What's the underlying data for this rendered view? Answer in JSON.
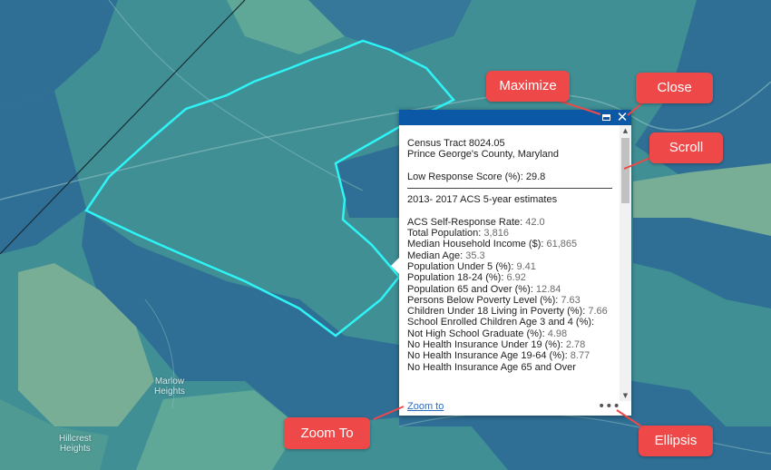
{
  "map": {
    "labels": [
      "Marlow\nHeights",
      "Hillcrest\nHeights"
    ],
    "colors": {
      "base": "#3f8f95",
      "dark_tract": "#2f6f95",
      "light_tract": "#5fa898",
      "pale_tract": "#78ad96",
      "highlight": "#2ef4f6"
    }
  },
  "popup": {
    "header_color": "#0a58a6",
    "maximize_icon": "maximize-icon",
    "close_icon": "close-icon",
    "title_line1": "Census Tract 8024.05",
    "title_line2": "Prince George's County, Maryland",
    "low_response_label": "Low Response Score (%):",
    "low_response_value": "29.8",
    "estimates_heading": "2013- 2017 ACS 5-year estimates",
    "fields": [
      {
        "label": "ACS Self-Response Rate:",
        "value": "42.0"
      },
      {
        "label": "Total Population:",
        "value": "3,816"
      },
      {
        "label": "Median Household Income ($):",
        "value": "61,865"
      },
      {
        "label": "Median Age:",
        "value": "35.3"
      },
      {
        "label": "Population Under 5 (%):",
        "value": "9.41"
      },
      {
        "label": "Population 18-24 (%):",
        "value": "6.92"
      },
      {
        "label": "Population 65 and Over (%):",
        "value": "12.84"
      },
      {
        "label": "Persons Below Poverty Level (%):",
        "value": "7.63"
      },
      {
        "label": "Children Under 18 Living in Poverty (%):",
        "value": "7.66"
      },
      {
        "label": "School Enrolled Children Age 3 and 4 (%):",
        "value": ""
      },
      {
        "label": "Not High School Graduate (%):",
        "value": "4.98"
      },
      {
        "label": "No Health Insurance Under 19 (%):",
        "value": "2.78"
      },
      {
        "label": "No Health Insurance Age 19-64 (%):",
        "value": "8.77"
      },
      {
        "label": "No Health Insurance Age 65 and Over",
        "value": ""
      }
    ],
    "zoom_label": "Zoom to",
    "ellipsis_label": "•••"
  },
  "callouts": {
    "maximize": "Maximize",
    "close": "Close",
    "scroll": "Scroll",
    "zoom_to": "Zoom To",
    "ellipsis": "Ellipsis",
    "color": "#ef4848"
  }
}
